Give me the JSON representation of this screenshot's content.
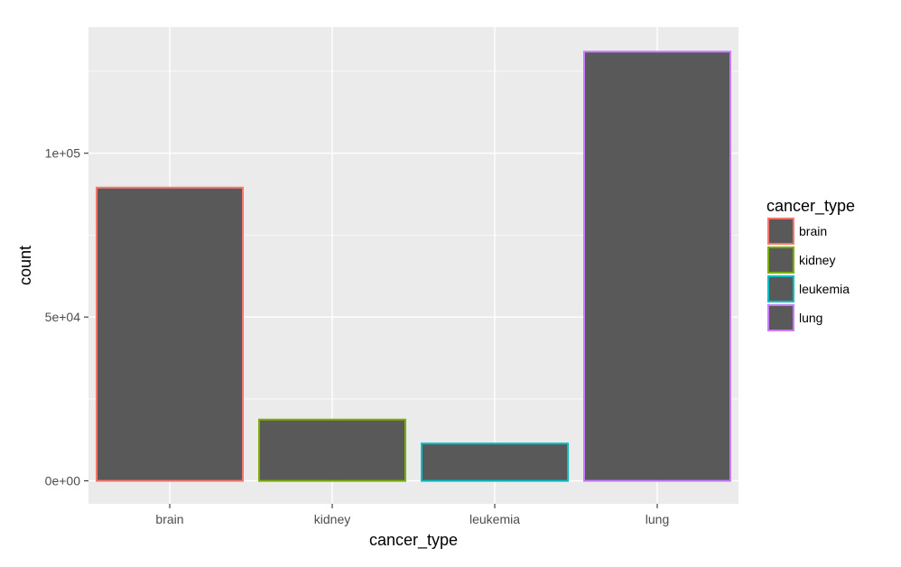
{
  "chart_data": {
    "type": "bar",
    "title": "",
    "xlabel": "cancer_type",
    "ylabel": "count",
    "categories": [
      "brain",
      "kidney",
      "leukemia",
      "lung"
    ],
    "values": [
      89500,
      18700,
      11400,
      131000
    ],
    "ylim": [
      -7000,
      138500
    ],
    "yticks": [
      0,
      50000,
      100000
    ],
    "ytick_labels": [
      "0e+00",
      "5e+04",
      "1e+05"
    ],
    "grid": true,
    "fill_color": "#595959",
    "outline_colors": [
      "#F8766D",
      "#7CAE00",
      "#00BFC4",
      "#C77CFF"
    ],
    "panel_background": "#EBEBEB",
    "grid_color": "#FFFFFF",
    "legend": {
      "title": "cancer_type",
      "placement": "right",
      "entries": [
        "brain",
        "kidney",
        "leukemia",
        "lung"
      ]
    }
  }
}
